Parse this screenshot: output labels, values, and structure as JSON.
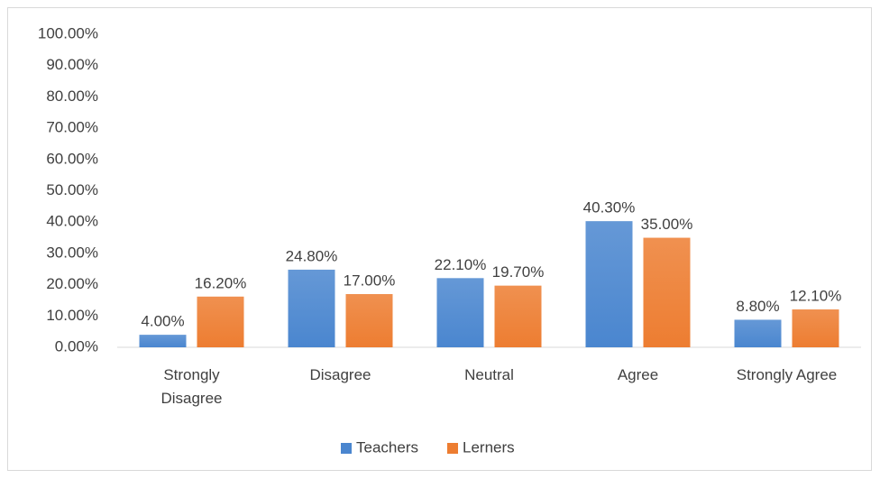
{
  "chart_data": {
    "type": "bar",
    "categories": [
      "Strongly Disagree",
      "Disagree",
      "Neutral",
      "Agree",
      "Strongly Agree"
    ],
    "series": [
      {
        "name": "Teachers",
        "color": "#4a86cf",
        "values": [
          4.0,
          24.8,
          22.1,
          40.3,
          8.8
        ],
        "value_labels": [
          "4.00%",
          "24.80%",
          "22.10%",
          "40.30%",
          "8.80%"
        ]
      },
      {
        "name": "Lerners",
        "color": "#ed7d31",
        "values": [
          16.2,
          17.0,
          19.7,
          35.0,
          12.1
        ],
        "value_labels": [
          "16.20%",
          "17.00%",
          "19.70%",
          "35.00%",
          "12.10%"
        ]
      }
    ],
    "ylim": [
      0,
      100
    ],
    "yticks": [
      {
        "value": 0,
        "label": "0.00%"
      },
      {
        "value": 10,
        "label": "10.00%"
      },
      {
        "value": 20,
        "label": "20.00%"
      },
      {
        "value": 30,
        "label": "30.00%"
      },
      {
        "value": 40,
        "label": "40.00%"
      },
      {
        "value": 50,
        "label": "50.00%"
      },
      {
        "value": 60,
        "label": "60.00%"
      },
      {
        "value": 70,
        "label": "70.00%"
      },
      {
        "value": 80,
        "label": "80.00%"
      },
      {
        "value": 90,
        "label": "90.00%"
      },
      {
        "value": 100,
        "label": "100.00%"
      }
    ],
    "grid": false,
    "legend": "bottom"
  }
}
